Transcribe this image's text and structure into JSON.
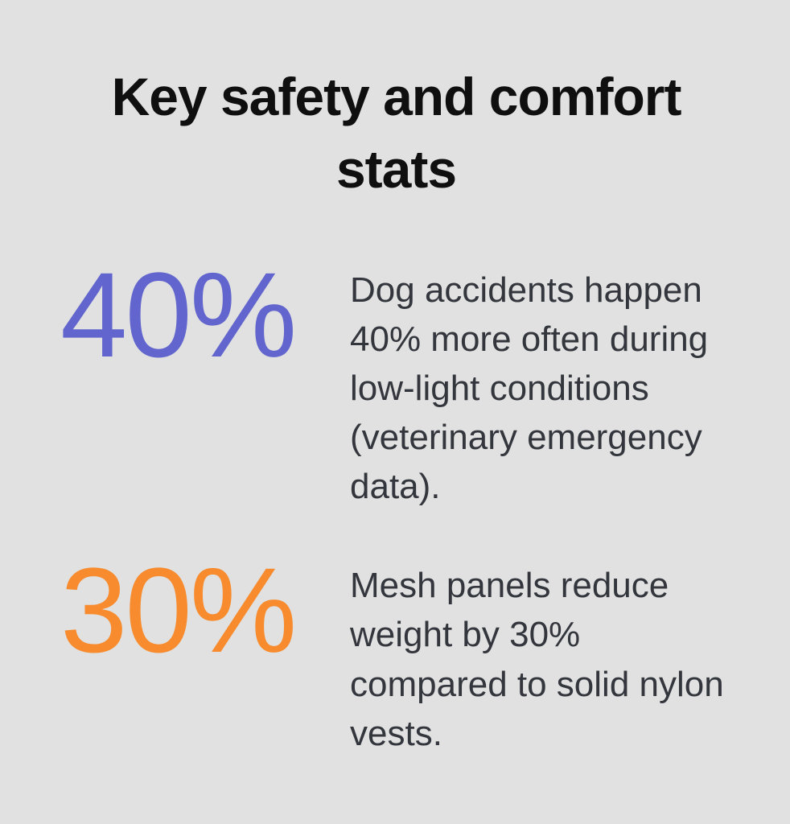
{
  "page": {
    "background_color": "#e0e1e0",
    "title": "Key safety and comfort stats",
    "title_color": "#0f0f0f",
    "body_text_color": "#33363d"
  },
  "stats": [
    {
      "value": "40%",
      "color": "#6165cd",
      "description": "Dog accidents happen 40% more often during low-light conditions (veterinary emergency data)."
    },
    {
      "value": "30%",
      "color": "#f78b2e",
      "description": "Mesh panels reduce weight by 30% compared to solid nylon vests."
    }
  ]
}
